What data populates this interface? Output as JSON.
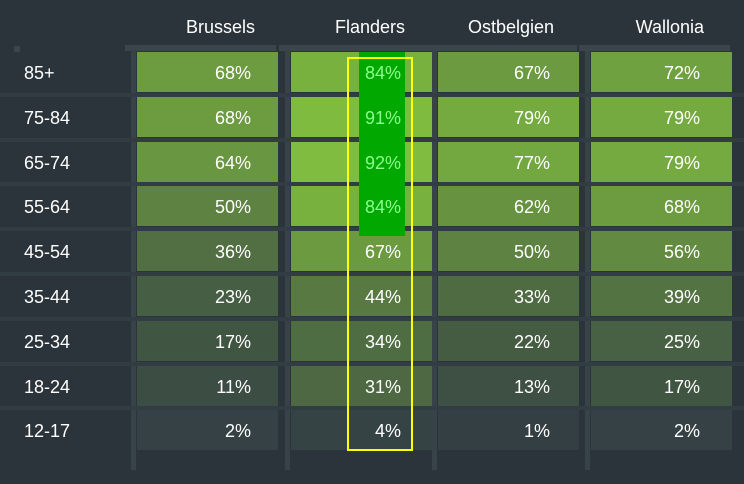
{
  "chart_data": {
    "type": "heatmap",
    "columns": [
      "Brussels",
      "Flanders",
      "Ostbelgien",
      "Wallonia"
    ],
    "rows": [
      "85+",
      "75-84",
      "65-74",
      "55-64",
      "45-54",
      "35-44",
      "25-34",
      "18-24",
      "12-17"
    ],
    "values": [
      [
        68,
        84,
        67,
        72
      ],
      [
        68,
        91,
        79,
        79
      ],
      [
        64,
        92,
        77,
        79
      ],
      [
        50,
        84,
        62,
        68
      ],
      [
        36,
        67,
        50,
        56
      ],
      [
        23,
        44,
        33,
        39
      ],
      [
        17,
        34,
        22,
        25
      ],
      [
        11,
        31,
        13,
        17
      ],
      [
        2,
        4,
        1,
        2
      ]
    ],
    "labels": [
      [
        "68%",
        "84%",
        "67%",
        "72%"
      ],
      [
        "68%",
        "91%",
        "79%",
        "79%"
      ],
      [
        "64%",
        "92%",
        "77%",
        "79%"
      ],
      [
        "50%",
        "84%",
        "62%",
        "68%"
      ],
      [
        "36%",
        "67%",
        "50%",
        "56%"
      ],
      [
        "23%",
        "44%",
        "33%",
        "39%"
      ],
      [
        "17%",
        "34%",
        "22%",
        "25%"
      ],
      [
        "11%",
        "31%",
        "13%",
        "17%"
      ],
      [
        "2%",
        "4%",
        "1%",
        "2%"
      ]
    ],
    "unit": "%",
    "highlight": {
      "column": "Flanders",
      "outlined_rows": [
        "85+",
        "12-17"
      ],
      "filled_rows": [
        "85+",
        "55-64"
      ],
      "fill_color": "#00a800",
      "outline_color": "#ffff00",
      "highlight_text_color": "#8dff8d"
    },
    "colors": {
      "background": "#2b343b",
      "low": "#333e44",
      "high": "#80bc3f"
    }
  }
}
